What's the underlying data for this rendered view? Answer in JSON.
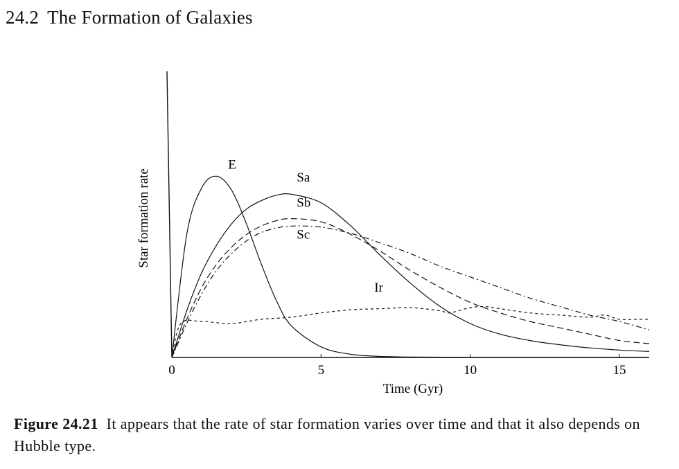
{
  "header": {
    "section_number": "24.2",
    "section_title": "The Formation of Galaxies"
  },
  "caption": {
    "label": "Figure 24.21",
    "text": "It appears that the rate of star formation varies over time and that it also depends on Hubble type."
  },
  "chart_data": {
    "type": "line",
    "title": "",
    "xlabel": "Time (Gyr)",
    "ylabel": "Star formation rate",
    "xlim": [
      0,
      16
    ],
    "ylim": [
      0,
      1
    ],
    "xticks": [
      0,
      5,
      10,
      15
    ],
    "y_tick_labels": false,
    "grid": false,
    "legend": "curve labels",
    "series": [
      {
        "name": "E",
        "style": "solid",
        "x": [
          0,
          0.5,
          1,
          1.5,
          2,
          2.5,
          3,
          3.5,
          4,
          5,
          6,
          7,
          8,
          10,
          12,
          14,
          16
        ],
        "y": [
          0,
          0.58,
          0.8,
          0.855,
          0.79,
          0.63,
          0.44,
          0.27,
          0.15,
          0.05,
          0.015,
          0.005,
          0.002,
          0.001,
          0.001,
          0.001,
          0.001
        ]
      },
      {
        "name": "Sa",
        "style": "solid",
        "x": [
          0,
          0.5,
          1,
          1.5,
          2,
          2.5,
          3,
          3.5,
          4,
          5,
          6,
          7,
          8,
          9,
          10,
          11,
          12,
          13,
          14,
          15,
          16
        ],
        "y": [
          0,
          0.22,
          0.4,
          0.53,
          0.63,
          0.7,
          0.74,
          0.765,
          0.77,
          0.73,
          0.62,
          0.48,
          0.35,
          0.24,
          0.16,
          0.11,
          0.08,
          0.06,
          0.045,
          0.035,
          0.028
        ]
      },
      {
        "name": "Sb",
        "style": "long-dash",
        "x": [
          0,
          0.5,
          1,
          1.5,
          2,
          2.5,
          3,
          3.5,
          4,
          5,
          6,
          7,
          8,
          9,
          10,
          11,
          12,
          13,
          14,
          15,
          16
        ],
        "y": [
          0,
          0.18,
          0.33,
          0.44,
          0.52,
          0.58,
          0.62,
          0.645,
          0.655,
          0.64,
          0.58,
          0.5,
          0.41,
          0.33,
          0.26,
          0.21,
          0.17,
          0.14,
          0.11,
          0.08,
          0.065
        ]
      },
      {
        "name": "Sc",
        "style": "dash-dot",
        "x": [
          0,
          0.5,
          1,
          1.5,
          2,
          2.5,
          3,
          3.5,
          4,
          5,
          6,
          7,
          8,
          9,
          10,
          11,
          12,
          13,
          14,
          15,
          16
        ],
        "y": [
          0,
          0.16,
          0.3,
          0.41,
          0.49,
          0.55,
          0.59,
          0.61,
          0.62,
          0.615,
          0.585,
          0.54,
          0.49,
          0.43,
          0.38,
          0.33,
          0.28,
          0.24,
          0.2,
          0.17,
          0.13
        ]
      },
      {
        "name": "Ir",
        "style": "short-dash",
        "x": [
          0,
          0.3,
          1,
          2,
          3,
          4,
          5,
          6,
          7,
          8,
          9,
          9.3,
          10,
          10.5,
          11,
          12,
          13,
          14,
          14.5,
          15,
          15.5,
          16
        ],
        "y": [
          0,
          0.16,
          0.17,
          0.16,
          0.18,
          0.19,
          0.21,
          0.225,
          0.23,
          0.235,
          0.22,
          0.21,
          0.235,
          0.24,
          0.23,
          0.21,
          0.2,
          0.19,
          0.2,
          0.18,
          0.18,
          0.18
        ]
      }
    ]
  }
}
